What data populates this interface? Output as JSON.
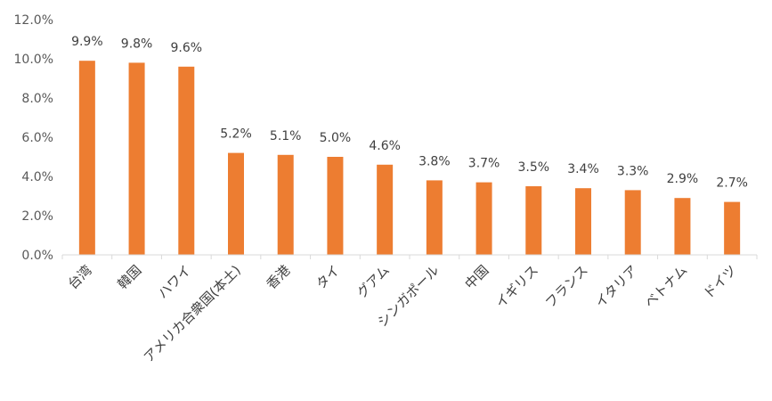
{
  "chart_data": {
    "type": "bar",
    "categories": [
      "台湾",
      "韓国",
      "ハワイ",
      "アメリカ合衆国(本土)",
      "香港",
      "タイ",
      "グアム",
      "シンガポール",
      "中国",
      "イギリス",
      "フランス",
      "イタリア",
      "ベトナム",
      "ドイツ"
    ],
    "values": [
      9.9,
      9.8,
      9.6,
      5.2,
      5.1,
      5.0,
      4.6,
      3.8,
      3.7,
      3.5,
      3.4,
      3.3,
      2.9,
      2.7
    ],
    "data_labels": [
      "9.9%",
      "9.8%",
      "9.6%",
      "5.2%",
      "5.1%",
      "5.0%",
      "4.6%",
      "3.8%",
      "3.7%",
      "3.5%",
      "3.4%",
      "3.3%",
      "2.9%",
      "2.7%"
    ],
    "y_ticks": [
      "0.0%",
      "2.0%",
      "4.0%",
      "6.0%",
      "8.0%",
      "10.0%",
      "12.0%"
    ],
    "ylim": [
      0,
      12
    ],
    "bar_color": "#ED7D31",
    "grid": false,
    "legend": "none"
  }
}
